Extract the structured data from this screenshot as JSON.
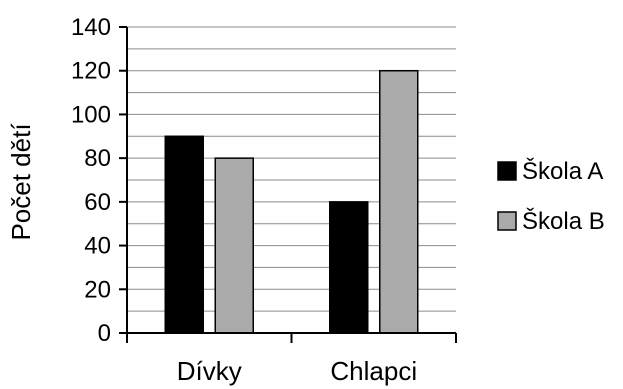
{
  "chart_data": {
    "type": "bar",
    "title": "",
    "xlabel": "",
    "ylabel": "Počet dětí",
    "categories": [
      "Dívky",
      "Chlapci"
    ],
    "series": [
      {
        "name": "Škola A",
        "values": [
          90,
          60
        ],
        "color": "#000000"
      },
      {
        "name": "Škola B",
        "values": [
          80,
          120
        ],
        "color": "#aaaaaa"
      }
    ],
    "ylim": [
      0,
      140
    ],
    "y_ticks": [
      "0",
      "20",
      "40",
      "60",
      "80",
      "100",
      "120",
      "140"
    ],
    "grid": true,
    "legend_position": "right"
  }
}
